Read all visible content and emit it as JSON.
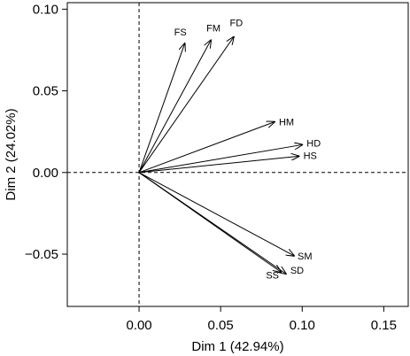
{
  "chart_data": {
    "type": "biplot",
    "xlabel": "Dim 1 (42.94%)",
    "ylabel": "Dim 2 (24.02%)",
    "xlim": [
      -0.044,
      0.165
    ],
    "ylim": [
      -0.082,
      0.104
    ],
    "xticks": [
      "0.00",
      "0.05",
      "0.10",
      "0.15"
    ],
    "yticks": [
      "−0.05",
      "0.00",
      "0.05",
      "0.10"
    ],
    "xtick_values": [
      0.0,
      0.05,
      0.1,
      0.15
    ],
    "ytick_values": [
      -0.05,
      0.0,
      0.05,
      0.1
    ],
    "reference_lines": {
      "x": 0,
      "y": 0,
      "style": "dashed"
    },
    "vectors": [
      {
        "name": "FS",
        "x": 0.028,
        "y": 0.079
      },
      {
        "name": "FM",
        "x": 0.044,
        "y": 0.081
      },
      {
        "name": "FD",
        "x": 0.058,
        "y": 0.083
      },
      {
        "name": "HM",
        "x": 0.083,
        "y": 0.031
      },
      {
        "name": "HD",
        "x": 0.1,
        "y": 0.017
      },
      {
        "name": "HS",
        "x": 0.098,
        "y": 0.01
      },
      {
        "name": "SM",
        "x": 0.095,
        "y": -0.051
      },
      {
        "name": "SD",
        "x": 0.09,
        "y": -0.062
      },
      {
        "name": "SS",
        "x": 0.087,
        "y": -0.061
      }
    ],
    "grid": false,
    "legend": "none"
  }
}
